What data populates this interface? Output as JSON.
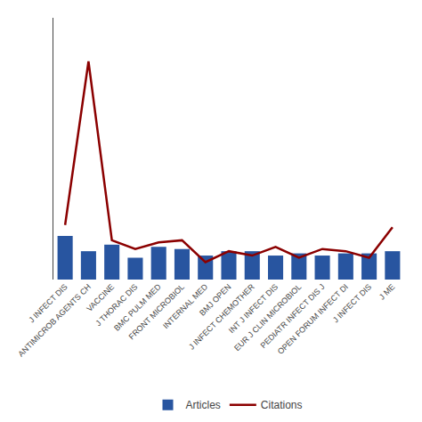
{
  "chart_data": {
    "type": "bar",
    "categories": [
      "J INFECT DIS",
      "ANTIMICROB AGENTS CH",
      "VACCINE",
      "J THORAC DIS",
      "BMC PULM MED",
      "FRONT MICROBIOL",
      "INTERNAL MED",
      "BMJ OPEN",
      "J INFECT CHEMOTHER",
      "INT J INFECT DIS",
      "EUR J CLIN MICROBIOL",
      "PEDIATR INFECT DIS J",
      "OPEN FORUM INFECT DI",
      "J INFECT DIS",
      "J ME"
    ],
    "series": [
      {
        "name": "Articles",
        "type": "bar",
        "color": "#2855A0",
        "values": [
          20,
          13,
          16,
          10,
          15,
          14,
          11,
          13,
          13,
          11,
          12,
          11,
          12,
          12,
          13
        ]
      },
      {
        "name": "Citations",
        "type": "line",
        "color": "#8B0000",
        "values": [
          25,
          100,
          18,
          14,
          17,
          18,
          8,
          13,
          11,
          15,
          10,
          14,
          13,
          10,
          24
        ]
      }
    ],
    "ylim": [
      0,
      120
    ],
    "grid": false,
    "tick_labels": "x",
    "legend": "bottom"
  }
}
